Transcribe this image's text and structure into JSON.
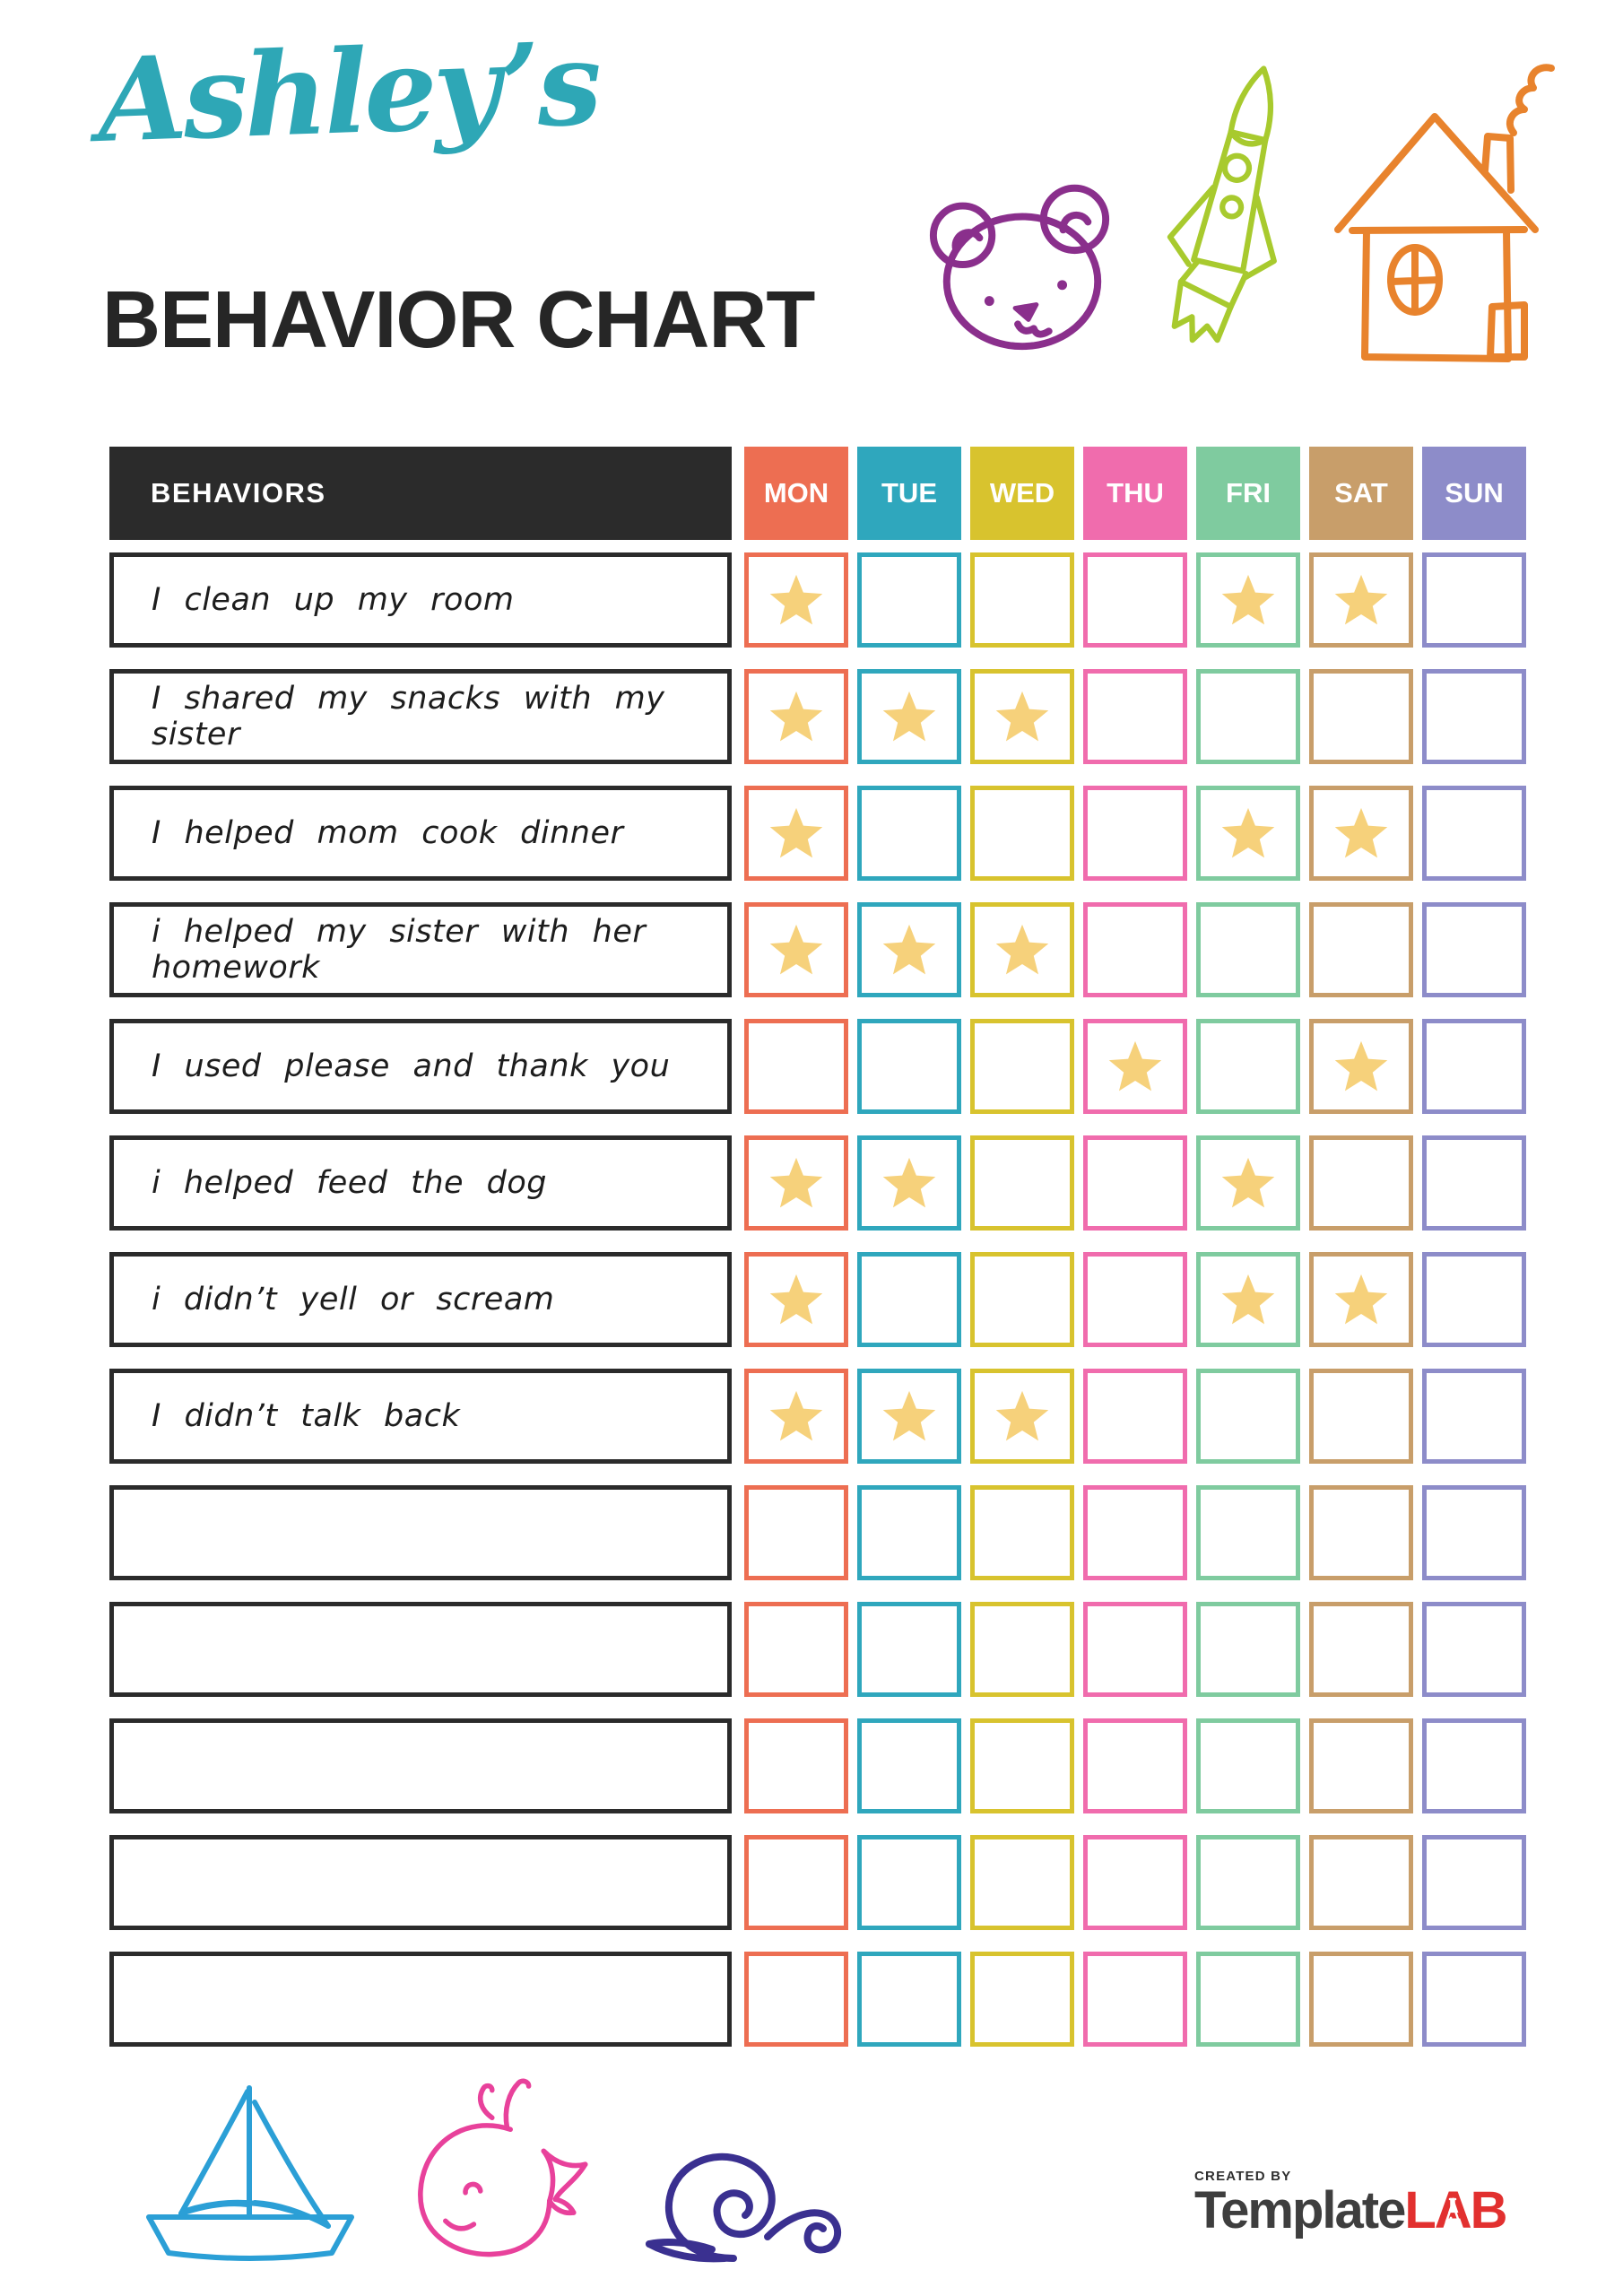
{
  "page": {
    "title": "Ashley’s",
    "subtitle": "BEHAVIOR CHART"
  },
  "colors": {
    "title": "#2EA7B6",
    "heading": "#262626",
    "header_bg": "#2B2B2B",
    "row_border": "#2B2B2B",
    "star": "#F6D17B",
    "brand_primary": "#3E3E3E",
    "brand_accent": "#E2302F"
  },
  "chart": {
    "behaviors_header": "BEHAVIORS",
    "days": [
      {
        "label": "MON",
        "color": "#ED6E52"
      },
      {
        "label": "TUE",
        "color": "#2FA7BD"
      },
      {
        "label": "WED",
        "color": "#D8C32E"
      },
      {
        "label": "THU",
        "color": "#F06CAD"
      },
      {
        "label": "FRI",
        "color": "#7FCB9F"
      },
      {
        "label": "SAT",
        "color": "#C89E6A"
      },
      {
        "label": "SUN",
        "color": "#8D8CC9"
      }
    ],
    "rows": [
      {
        "behavior": "I clean up my room",
        "stars": [
          1,
          0,
          0,
          0,
          1,
          1,
          0
        ]
      },
      {
        "behavior": "I shared my snacks with my sister",
        "stars": [
          1,
          1,
          1,
          0,
          0,
          0,
          0
        ]
      },
      {
        "behavior": "I helped mom cook dinner",
        "stars": [
          1,
          0,
          0,
          0,
          1,
          1,
          0
        ]
      },
      {
        "behavior": "i helped my sister with her homework",
        "stars": [
          1,
          1,
          1,
          0,
          0,
          0,
          0
        ]
      },
      {
        "behavior": "I used please and thank you",
        "stars": [
          0,
          0,
          0,
          1,
          0,
          1,
          0
        ]
      },
      {
        "behavior": "i helped feed the dog",
        "stars": [
          1,
          1,
          0,
          0,
          1,
          0,
          0
        ]
      },
      {
        "behavior": "i didn’t yell or scream",
        "stars": [
          1,
          0,
          0,
          0,
          1,
          1,
          0
        ]
      },
      {
        "behavior": "I didn’t talk back",
        "stars": [
          1,
          1,
          1,
          0,
          0,
          0,
          0
        ]
      },
      {
        "behavior": "",
        "stars": [
          0,
          0,
          0,
          0,
          0,
          0,
          0
        ]
      },
      {
        "behavior": "",
        "stars": [
          0,
          0,
          0,
          0,
          0,
          0,
          0
        ]
      },
      {
        "behavior": "",
        "stars": [
          0,
          0,
          0,
          0,
          0,
          0,
          0
        ]
      },
      {
        "behavior": "",
        "stars": [
          0,
          0,
          0,
          0,
          0,
          0,
          0
        ]
      },
      {
        "behavior": "",
        "stars": [
          0,
          0,
          0,
          0,
          0,
          0,
          0
        ]
      }
    ]
  },
  "decorations": {
    "top": [
      {
        "name": "bear",
        "color": "#8A2F8C"
      },
      {
        "name": "rocket",
        "color": "#A8CA2E"
      },
      {
        "name": "house",
        "color": "#E8832D"
      }
    ],
    "bottom": [
      {
        "name": "sailboat",
        "color": "#2B9FD6"
      },
      {
        "name": "whale",
        "color": "#E8419B"
      },
      {
        "name": "snail",
        "color": "#3A3090"
      }
    ]
  },
  "footer": {
    "created_by": "CREATED BY",
    "brand_primary": "Template",
    "brand_accent": "LAB"
  }
}
